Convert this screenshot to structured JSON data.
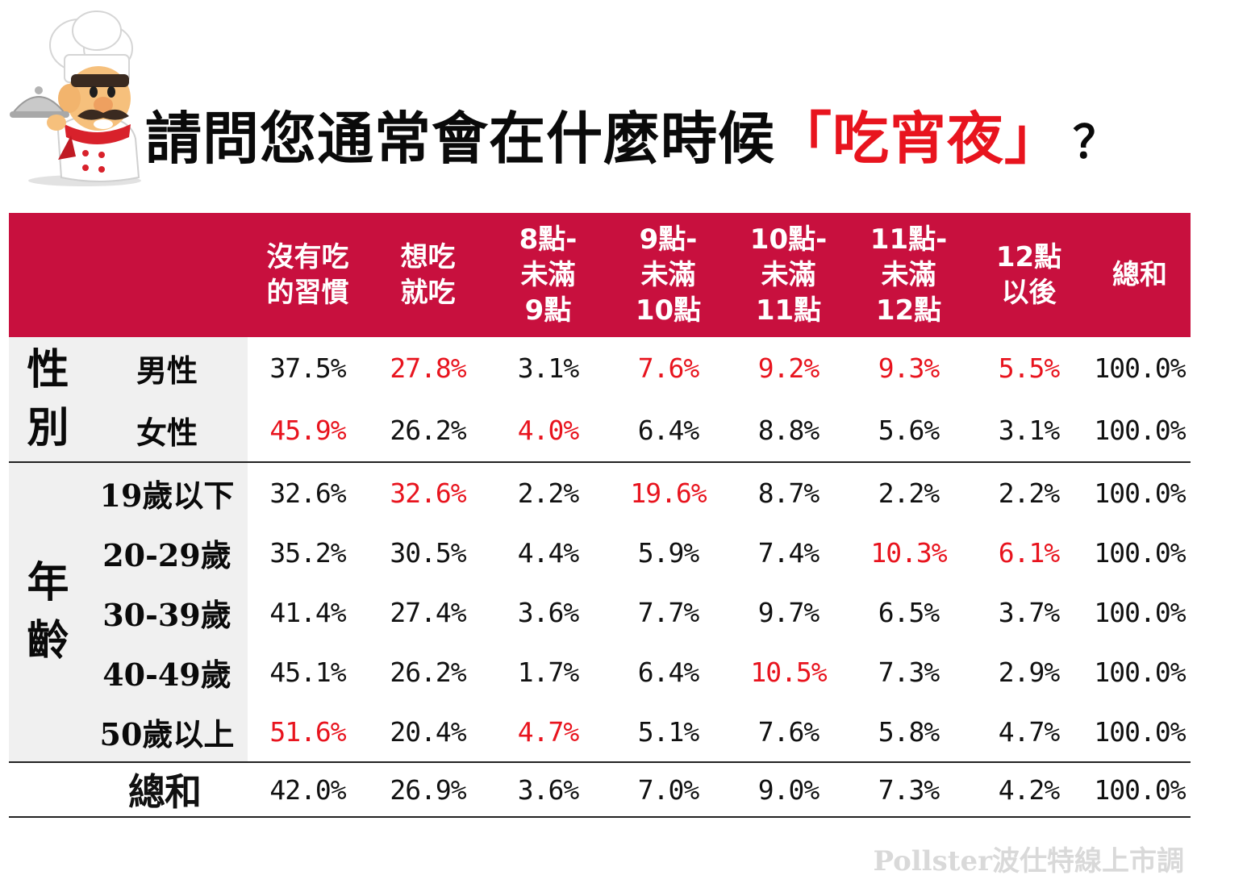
{
  "title": {
    "main": "請問您通常會在什麼時候",
    "highlight": "「吃宵夜」",
    "qmark": "？"
  },
  "source": "Pollster波仕特線上市調",
  "colors": {
    "header_bg": "#c8103e",
    "highlight": "#e8141e",
    "label_bg": "#f0f0f0"
  },
  "chart_data": {
    "type": "table",
    "title": "請問您通常會在什麼時候「吃宵夜」？",
    "columns": [
      [
        "沒有吃",
        "的習慣"
      ],
      [
        "想吃",
        "就吃"
      ],
      [
        "8點-",
        "未滿",
        "9點"
      ],
      [
        "9點-",
        "未滿",
        "10點"
      ],
      [
        "10點-",
        "未滿",
        "11點"
      ],
      [
        "11點-",
        "未滿",
        "12點"
      ],
      [
        "12點",
        "以後"
      ],
      [
        "總和"
      ]
    ],
    "groups": [
      {
        "label": [
          "性",
          "別"
        ],
        "rows": [
          {
            "label": "男性",
            "values": [
              "37.5%",
              "27.8%",
              "3.1%",
              "7.6%",
              "9.2%",
              "9.3%",
              "5.5%",
              "100.0%"
            ],
            "highlight": [
              false,
              true,
              false,
              true,
              true,
              true,
              true,
              false
            ]
          },
          {
            "label": "女性",
            "values": [
              "45.9%",
              "26.2%",
              "4.0%",
              "6.4%",
              "8.8%",
              "5.6%",
              "3.1%",
              "100.0%"
            ],
            "highlight": [
              true,
              false,
              true,
              false,
              false,
              false,
              false,
              false
            ]
          }
        ]
      },
      {
        "label": [
          "年",
          "齡"
        ],
        "rows": [
          {
            "label": "19歲以下",
            "values": [
              "32.6%",
              "32.6%",
              "2.2%",
              "19.6%",
              "8.7%",
              "2.2%",
              "2.2%",
              "100.0%"
            ],
            "highlight": [
              false,
              true,
              false,
              true,
              false,
              false,
              false,
              false
            ]
          },
          {
            "label": "20-29歲",
            "values": [
              "35.2%",
              "30.5%",
              "4.4%",
              "5.9%",
              "7.4%",
              "10.3%",
              "6.1%",
              "100.0%"
            ],
            "highlight": [
              false,
              false,
              false,
              false,
              false,
              true,
              true,
              false
            ]
          },
          {
            "label": "30-39歲",
            "values": [
              "41.4%",
              "27.4%",
              "3.6%",
              "7.7%",
              "9.7%",
              "6.5%",
              "3.7%",
              "100.0%"
            ],
            "highlight": [
              false,
              false,
              false,
              false,
              false,
              false,
              false,
              false
            ]
          },
          {
            "label": "40-49歲",
            "values": [
              "45.1%",
              "26.2%",
              "1.7%",
              "6.4%",
              "10.5%",
              "7.3%",
              "2.9%",
              "100.0%"
            ],
            "highlight": [
              false,
              false,
              false,
              false,
              true,
              false,
              false,
              false
            ]
          },
          {
            "label": "50歲以上",
            "values": [
              "51.6%",
              "20.4%",
              "4.7%",
              "5.1%",
              "7.6%",
              "5.8%",
              "4.7%",
              "100.0%"
            ],
            "highlight": [
              true,
              false,
              true,
              false,
              false,
              false,
              false,
              false
            ]
          }
        ]
      }
    ],
    "total": {
      "label": "總和",
      "values": [
        "42.0%",
        "26.9%",
        "3.6%",
        "7.0%",
        "9.0%",
        "7.3%",
        "4.2%",
        "100.0%"
      ]
    }
  }
}
